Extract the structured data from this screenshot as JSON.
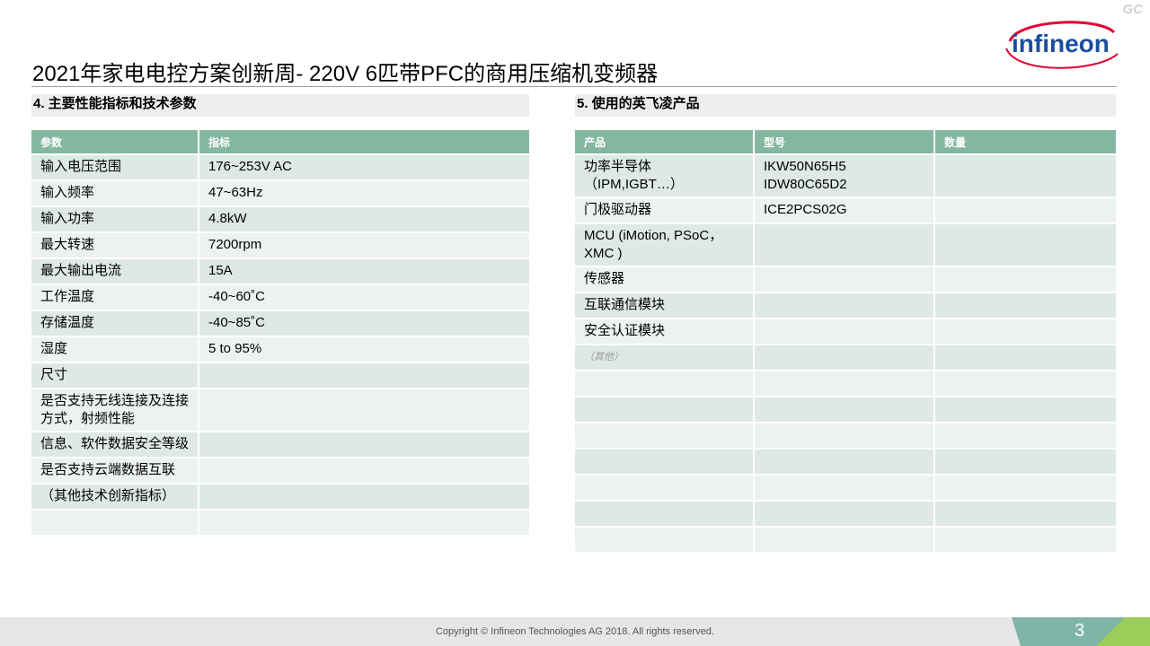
{
  "header": {
    "corner_mark": "GC",
    "logo": "infineon",
    "title": "2021年家电电控方案创新周- 220V 6匹带PFC的商用压缩机变频器"
  },
  "left_section": {
    "heading": "4. 主要性能指标和技术参数",
    "table": {
      "columns": [
        "参数",
        "指标"
      ],
      "rows": [
        [
          "输入电压范围",
          "176~253V AC"
        ],
        [
          "输入频率",
          "47~63Hz"
        ],
        [
          "输入功率",
          "4.8kW"
        ],
        [
          "最大转速",
          "7200rpm"
        ],
        [
          "最大输出电流",
          "15A"
        ],
        [
          "工作温度",
          "-40~60˚C"
        ],
        [
          "存储温度",
          "-40~85˚C"
        ],
        [
          "湿度",
          "5 to 95%"
        ],
        [
          "尺寸"
        ],
        [
          "是否支持无线连接及连接方式，射频性能"
        ],
        [
          "信息、软件数据安全等级"
        ],
        [
          "是否支持云端数据互联"
        ],
        [
          "（其他技术创新指标）"
        ]
      ]
    }
  },
  "right_section": {
    "heading": "5. 使用的英飞凌产品",
    "table": {
      "columns": [
        "产品",
        "型号",
        "数量"
      ],
      "rows": [
        [
          "功率半导体\n（IPM,IGBT…）",
          "IKW50N65H5\nIDW80C65D2"
        ],
        [
          "门极驱动器",
          "ICE2PCS02G"
        ],
        [
          "MCU (iMotion, PSoC，\nXMC )"
        ],
        [
          "传感器"
        ],
        [
          "互联通信模块"
        ],
        [
          "安全认证模块"
        ],
        [
          "（其他）"
        ]
      ]
    }
  },
  "footer": {
    "copyright": "Copyright © Infineon Technologies AG 2018. All rights reserved.",
    "page_number": "3"
  }
}
